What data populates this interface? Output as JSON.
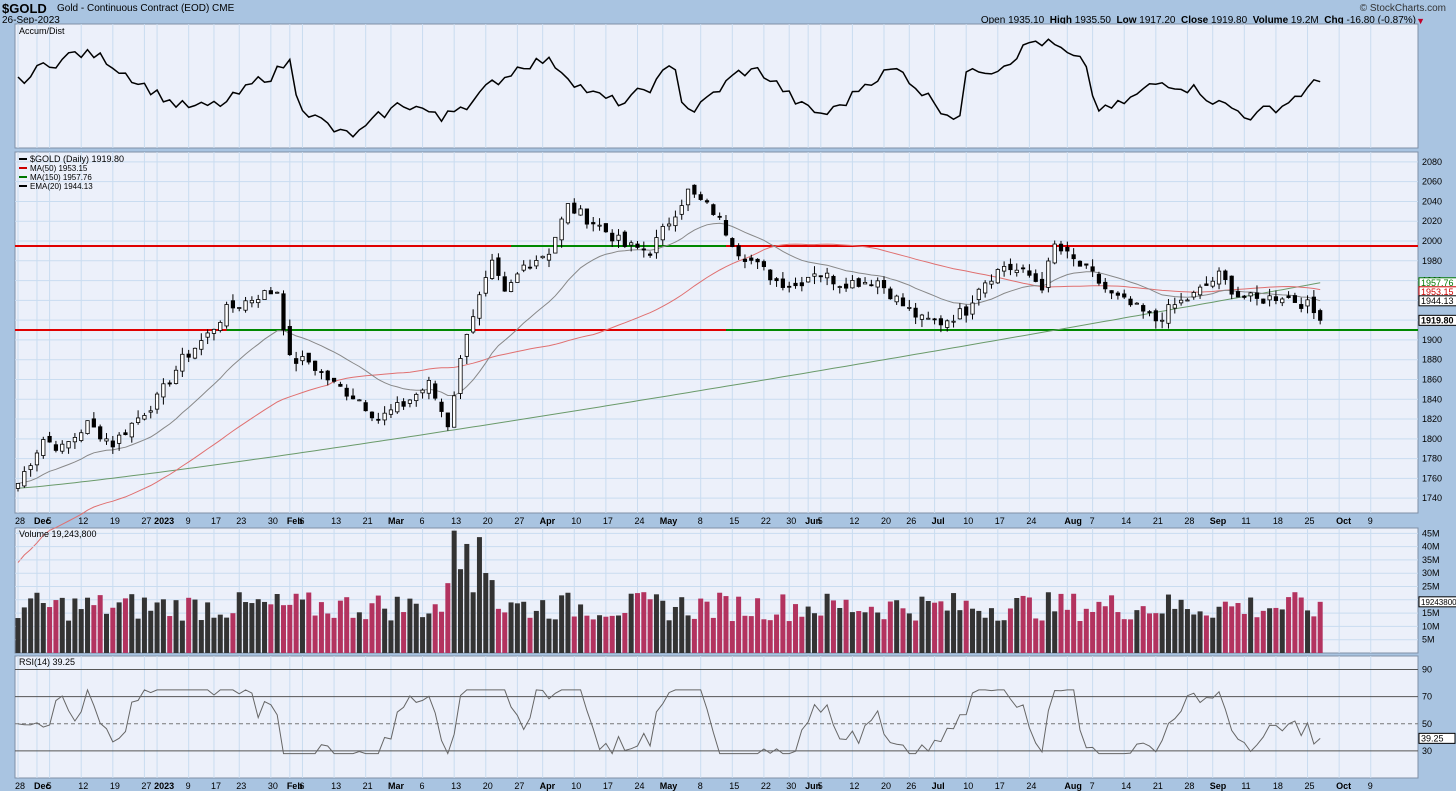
{
  "header": {
    "symbol": "$GOLD",
    "description": "Gold - Continuous Contract (EOD)  CME",
    "date": "26-Sep-2023",
    "brand": "© StockCharts.com",
    "open_label": "Open",
    "open": "1935.10",
    "high_label": "High",
    "high": "1935.50",
    "low_label": "Low",
    "low": "1917.20",
    "close_label": "Close",
    "close": "1919.80",
    "volume_label": "Volume",
    "volume": "19.2M",
    "chg_label": "Chg",
    "chg": "-16.80 (-0.87%)"
  },
  "panels": {
    "accum": {
      "label": "Accum/Dist"
    },
    "price": {
      "legend": [
        {
          "text": "$GOLD (Daily) 1919.80",
          "color": "#000000"
        },
        {
          "text": "MA(50) 1953.15",
          "color": "#cc0000"
        },
        {
          "text": "MA(150) 1957.76",
          "color": "#007700"
        },
        {
          "text": "EMA(20) 1944.13",
          "color": "#000000"
        }
      ],
      "ticks": [
        1740,
        1760,
        1780,
        1800,
        1820,
        1840,
        1860,
        1880,
        1900,
        1920,
        1940,
        1960,
        1980,
        2000,
        2020,
        2040,
        2060,
        2080
      ],
      "value_tags": [
        {
          "text": "1957.76",
          "value": 1957.76,
          "color": "#007700"
        },
        {
          "text": "1953.15",
          "value": 1953.15,
          "color": "#cc0000"
        },
        {
          "text": "1944.13",
          "value": 1944.13,
          "color": "#000000"
        },
        {
          "text": "1919.80",
          "value": 1919.8,
          "color": "#000000",
          "bold": true
        }
      ],
      "hlines": [
        {
          "value": 1995,
          "color": "#e00000"
        },
        {
          "value": 1910,
          "color": "#e00000"
        }
      ]
    },
    "volume": {
      "label": "Volume 19,243,800",
      "ticks": [
        "5M",
        "10M",
        "15M",
        "20M",
        "25M",
        "30M",
        "35M",
        "40M",
        "45M"
      ],
      "tag": "19243800"
    },
    "rsi": {
      "label": "RSI(14) 39.25",
      "ticks": [
        "30",
        "50",
        "70",
        "90"
      ],
      "tag": "39.25"
    }
  },
  "xaxis": {
    "labels": [
      {
        "t": "28",
        "i": 0
      },
      {
        "t": "Dec",
        "i": 3,
        "bold": true
      },
      {
        "t": "5",
        "i": 5
      },
      {
        "t": "12",
        "i": 10
      },
      {
        "t": "19",
        "i": 15
      },
      {
        "t": "27",
        "i": 20
      },
      {
        "t": "2023",
        "i": 22,
        "bold": true
      },
      {
        "t": "9",
        "i": 27
      },
      {
        "t": "17",
        "i": 31
      },
      {
        "t": "23",
        "i": 35
      },
      {
        "t": "30",
        "i": 40
      },
      {
        "t": "Feb",
        "i": 43,
        "bold": true
      },
      {
        "t": "6",
        "i": 45
      },
      {
        "t": "13",
        "i": 50
      },
      {
        "t": "21",
        "i": 55
      },
      {
        "t": "Mar",
        "i": 59,
        "bold": true
      },
      {
        "t": "6",
        "i": 64
      },
      {
        "t": "13",
        "i": 69
      },
      {
        "t": "20",
        "i": 74
      },
      {
        "t": "27",
        "i": 79
      },
      {
        "t": "Apr",
        "i": 83,
        "bold": true
      },
      {
        "t": "10",
        "i": 88
      },
      {
        "t": "17",
        "i": 93
      },
      {
        "t": "24",
        "i": 98
      },
      {
        "t": "May",
        "i": 102,
        "bold": true
      },
      {
        "t": "8",
        "i": 108
      },
      {
        "t": "15",
        "i": 113
      },
      {
        "t": "22",
        "i": 118
      },
      {
        "t": "30",
        "i": 122
      },
      {
        "t": "Jun",
        "i": 125,
        "bold": true
      },
      {
        "t": "5",
        "i": 127
      },
      {
        "t": "12",
        "i": 132
      },
      {
        "t": "20",
        "i": 137
      },
      {
        "t": "26",
        "i": 141
      },
      {
        "t": "Jul",
        "i": 145,
        "bold": true
      },
      {
        "t": "10",
        "i": 150
      },
      {
        "t": "17",
        "i": 155
      },
      {
        "t": "24",
        "i": 160
      },
      {
        "t": "Aug",
        "i": 166,
        "bold": true
      },
      {
        "t": "7",
        "i": 170
      },
      {
        "t": "14",
        "i": 175
      },
      {
        "t": "21",
        "i": 180
      },
      {
        "t": "28",
        "i": 185
      },
      {
        "t": "Sep",
        "i": 189,
        "bold": true
      },
      {
        "t": "11",
        "i": 194
      },
      {
        "t": "18",
        "i": 199
      },
      {
        "t": "25",
        "i": 204
      },
      {
        "t": "Oct",
        "i": 209,
        "bold": true
      },
      {
        "t": "9",
        "i": 214
      }
    ]
  },
  "chart_data": {
    "type": "candlestick",
    "title": "$GOLD (Daily) 1919.80",
    "start": "2022-11-28",
    "end": "2023-09-26",
    "price_range": [
      1725,
      2090
    ],
    "anchors": [
      {
        "i": 0,
        "v": 1755
      },
      {
        "i": 4,
        "v": 1800
      },
      {
        "i": 7,
        "v": 1790
      },
      {
        "i": 11,
        "v": 1815
      },
      {
        "i": 15,
        "v": 1795
      },
      {
        "i": 18,
        "v": 1815
      },
      {
        "i": 22,
        "v": 1840
      },
      {
        "i": 26,
        "v": 1880
      },
      {
        "i": 30,
        "v": 1905
      },
      {
        "i": 33,
        "v": 1930
      },
      {
        "i": 38,
        "v": 1945
      },
      {
        "i": 41,
        "v": 1950
      },
      {
        "i": 43,
        "v": 1880
      },
      {
        "i": 46,
        "v": 1878
      },
      {
        "i": 50,
        "v": 1855
      },
      {
        "i": 54,
        "v": 1840
      },
      {
        "i": 57,
        "v": 1820
      },
      {
        "i": 61,
        "v": 1835
      },
      {
        "i": 65,
        "v": 1855
      },
      {
        "i": 68,
        "v": 1815
      },
      {
        "i": 71,
        "v": 1910
      },
      {
        "i": 75,
        "v": 1975
      },
      {
        "i": 77,
        "v": 1945
      },
      {
        "i": 80,
        "v": 1975
      },
      {
        "i": 84,
        "v": 1990
      },
      {
        "i": 87,
        "v": 2035
      },
      {
        "i": 92,
        "v": 2015
      },
      {
        "i": 96,
        "v": 1995
      },
      {
        "i": 100,
        "v": 1990
      },
      {
        "i": 104,
        "v": 2030
      },
      {
        "i": 106,
        "v": 2050
      },
      {
        "i": 110,
        "v": 2030
      },
      {
        "i": 114,
        "v": 1990
      },
      {
        "i": 120,
        "v": 1960
      },
      {
        "i": 123,
        "v": 1955
      },
      {
        "i": 126,
        "v": 1970
      },
      {
        "i": 130,
        "v": 1958
      },
      {
        "i": 136,
        "v": 1960
      },
      {
        "i": 140,
        "v": 1935
      },
      {
        "i": 143,
        "v": 1920
      },
      {
        "i": 146,
        "v": 1918
      },
      {
        "i": 150,
        "v": 1930
      },
      {
        "i": 152,
        "v": 1955
      },
      {
        "i": 156,
        "v": 1975
      },
      {
        "i": 160,
        "v": 1965
      },
      {
        "i": 162,
        "v": 1955
      },
      {
        "i": 164,
        "v": 1995
      },
      {
        "i": 166,
        "v": 1985
      },
      {
        "i": 170,
        "v": 1965
      },
      {
        "i": 173,
        "v": 1945
      },
      {
        "i": 176,
        "v": 1935
      },
      {
        "i": 180,
        "v": 1920
      },
      {
        "i": 183,
        "v": 1935
      },
      {
        "i": 186,
        "v": 1945
      },
      {
        "i": 190,
        "v": 1965
      },
      {
        "i": 193,
        "v": 1945
      },
      {
        "i": 196,
        "v": 1940
      },
      {
        "i": 200,
        "v": 1945
      },
      {
        "i": 204,
        "v": 1935
      },
      {
        "i": 206,
        "v": 1919.8
      }
    ],
    "series": [
      {
        "name": "MA(50)",
        "last": 1953.15
      },
      {
        "name": "MA(150)",
        "last": 1957.76
      },
      {
        "name": "EMA(20)",
        "last": 1944.13
      }
    ],
    "volume_last": 19243800,
    "rsi_last": 39.25,
    "support": 1910,
    "resistance": 1995
  }
}
